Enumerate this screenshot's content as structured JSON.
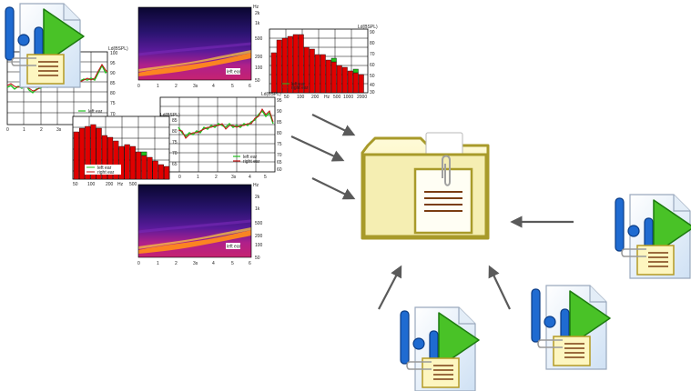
{
  "colors": {
    "bar_red": "#e00000",
    "bar_green": "#21c21e",
    "left_ear_line": "#1fbf1f",
    "right_ear_line": "#c01010",
    "arrow": "#5a5a5a",
    "folder_fill": "#fbf7c9",
    "folder_stroke": "#a89a2a",
    "doc_lines": "#7b3d12",
    "icon_blue": "#1f6bd1",
    "icon_green": "#49c227"
  },
  "line_charts": [
    {
      "id": "line-chart-1",
      "unit": "Ld(BSPL)",
      "yticks": [
        "100",
        "95",
        "90",
        "85",
        "80",
        "75",
        "70"
      ],
      "xticks": [
        "0",
        "1",
        "2",
        "3s",
        "4",
        "5",
        "6"
      ],
      "legend": [
        "left ear"
      ]
    },
    {
      "id": "line-chart-2",
      "unit": "Ld(BSPL)",
      "left_yticks": [
        "85",
        "80",
        "75",
        "70",
        "65"
      ],
      "yticks": [
        "95",
        "90",
        "85",
        "80",
        "75",
        "70",
        "65",
        "60"
      ],
      "xticks": [
        "0",
        "1",
        "2",
        "3s",
        "4",
        "5",
        "6"
      ],
      "legend": [
        "left ear",
        "right ear"
      ]
    }
  ],
  "bar_charts": [
    {
      "id": "bar-chart-1",
      "unit": "Ld(BSPL)",
      "yticks": [
        "90",
        "80",
        "70",
        "60",
        "50",
        "40",
        "30"
      ],
      "xticks": [
        "50",
        "100",
        "200",
        "Hz",
        "500",
        "1000",
        "2000"
      ],
      "legend": [
        "left ear",
        "right ear"
      ]
    },
    {
      "id": "bar-chart-2",
      "xticks": [
        "50",
        "100",
        "200",
        "Hz",
        "500"
      ],
      "legend": [
        "left ear",
        "right ear"
      ]
    }
  ],
  "spectrograms": [
    {
      "id": "spectrogram-1",
      "unit": "Hz",
      "yticks": [
        "2k",
        "1k",
        "500",
        "200",
        "100",
        "50"
      ],
      "xticks": [
        "0",
        "1",
        "2",
        "3s",
        "4",
        "5",
        "6"
      ],
      "tag": "left ear"
    },
    {
      "id": "spectrogram-2",
      "unit": "Hz",
      "yticks": [
        "2k",
        "1k",
        "500",
        "200",
        "100",
        "50"
      ],
      "xticks": [
        "0",
        "1",
        "2",
        "3s",
        "4",
        "5",
        "6"
      ],
      "tag": "left ear"
    }
  ],
  "icons": [
    "folder-icon",
    "recording-file-icon"
  ]
}
